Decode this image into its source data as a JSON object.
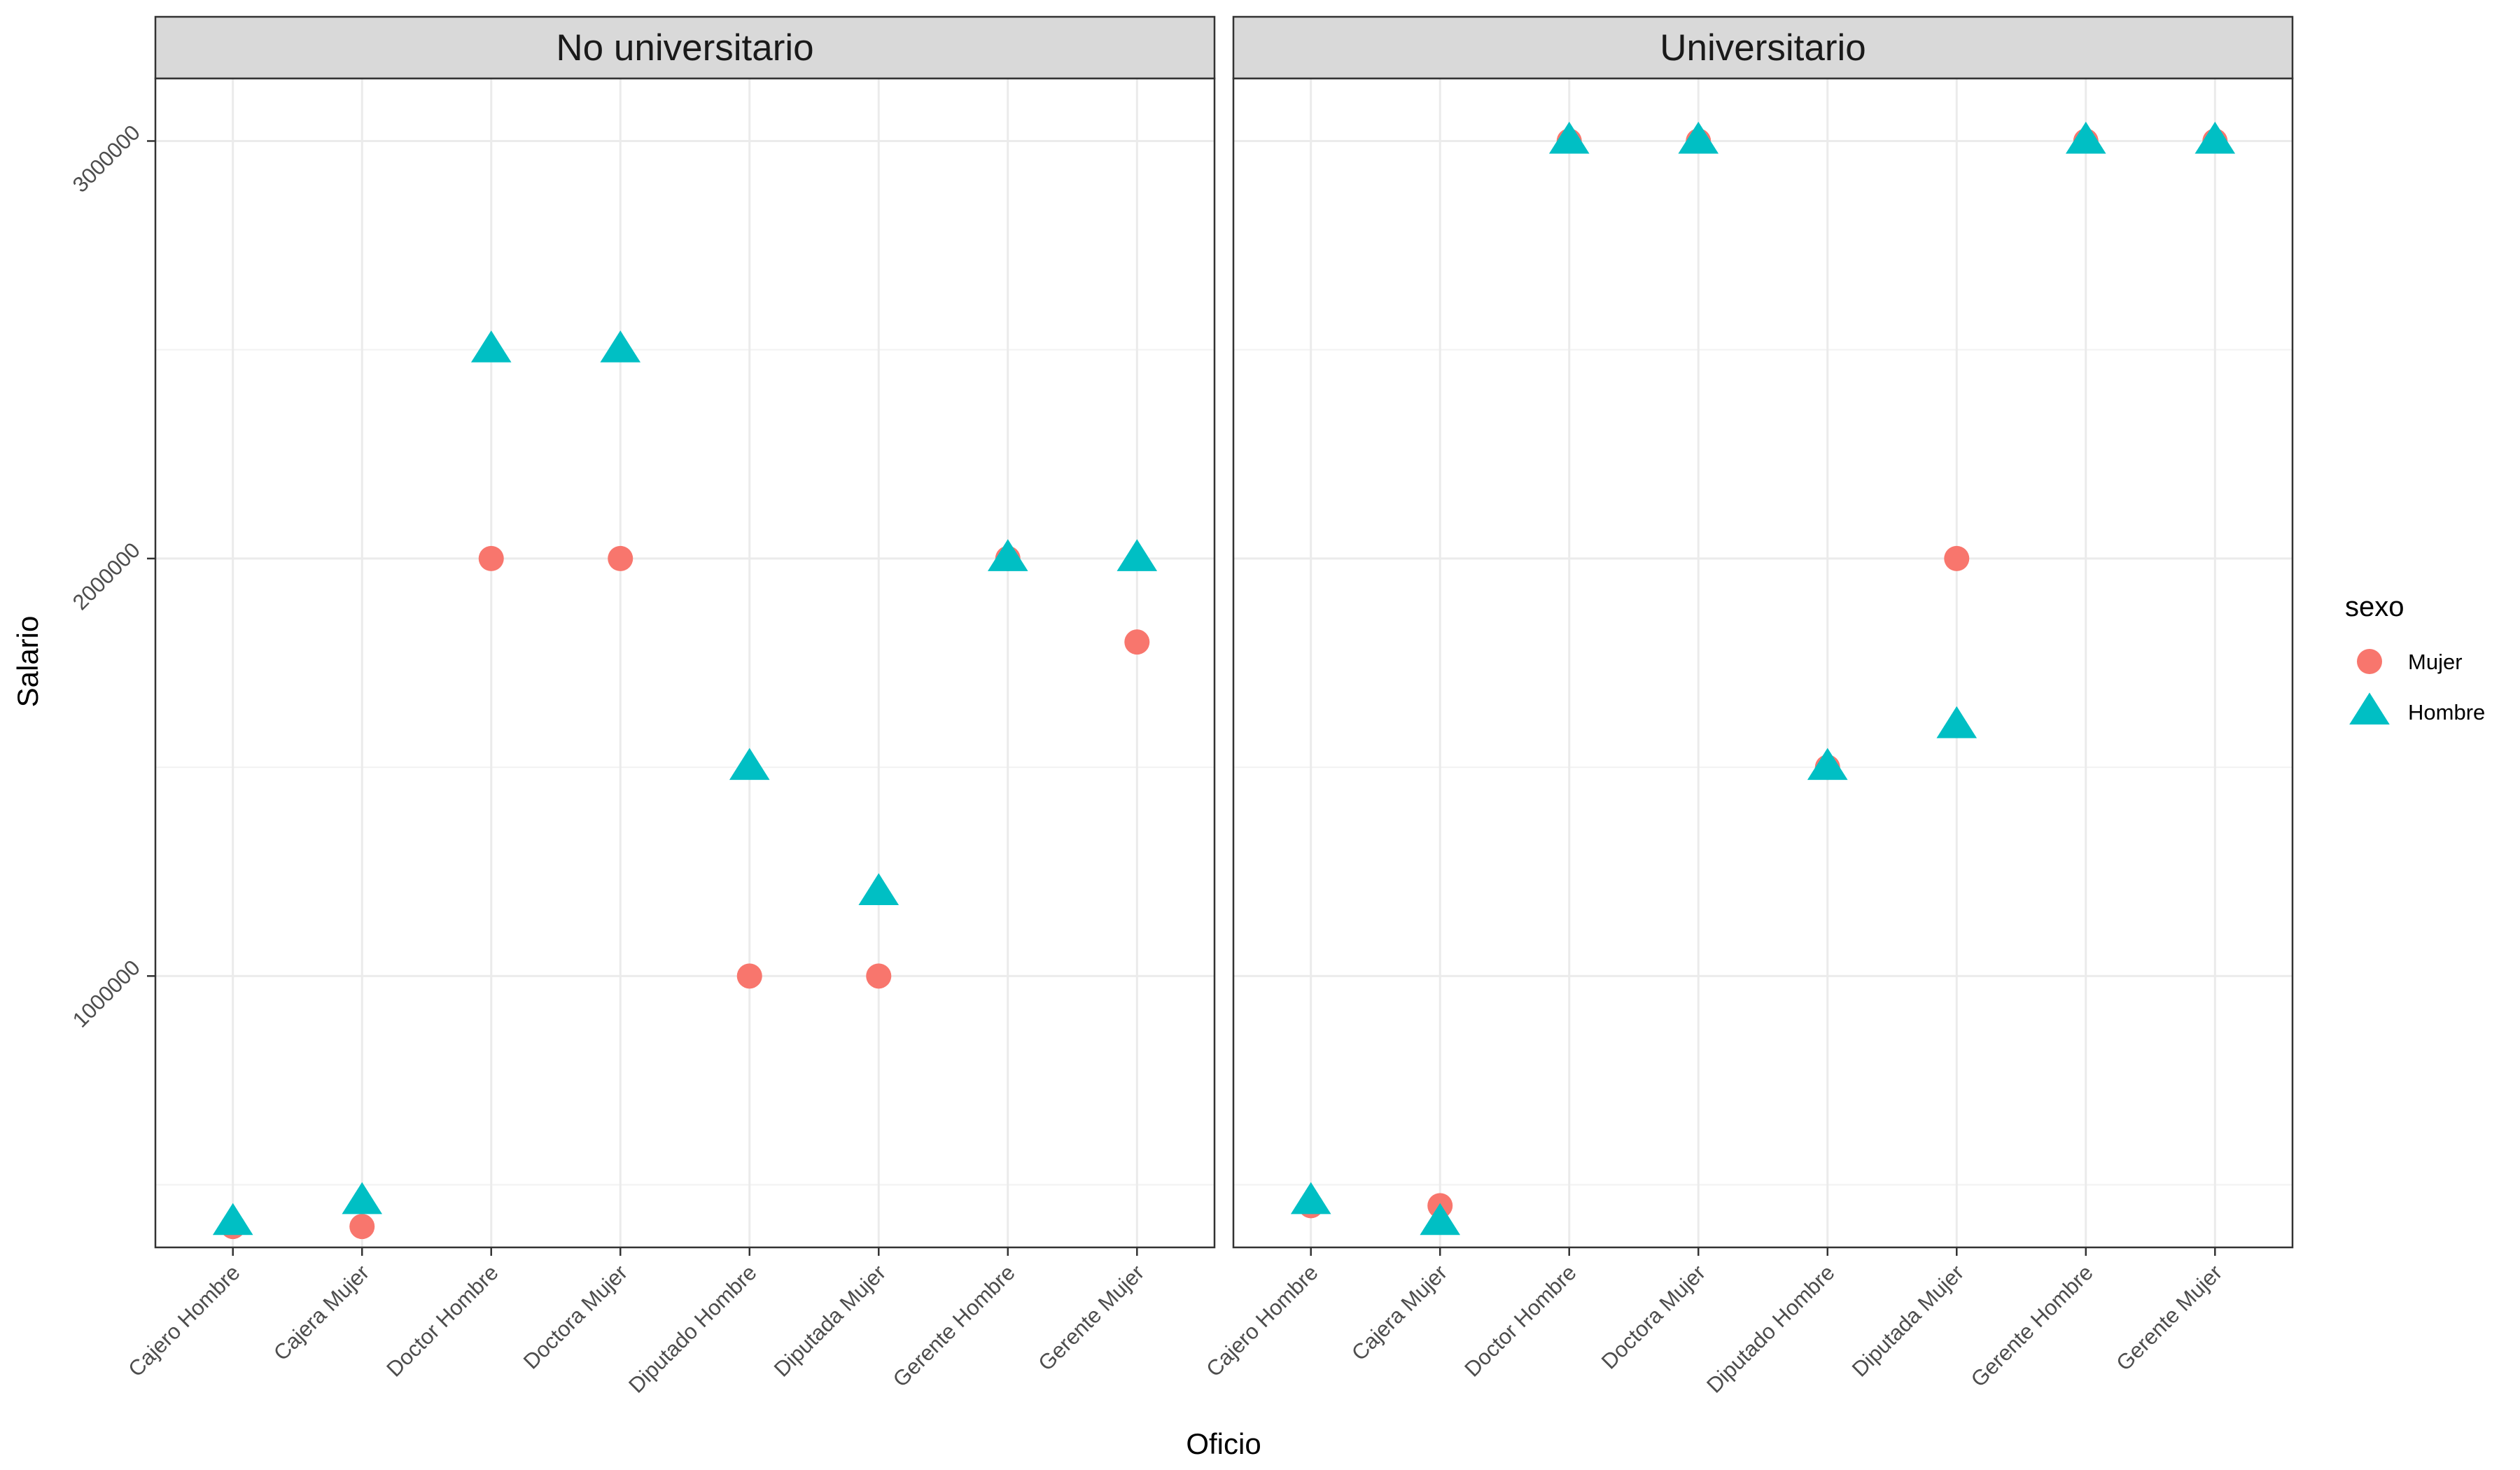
{
  "chart_data": {
    "type": "scatter",
    "xlabel": "Oficio",
    "ylabel": "Salario",
    "ylim": [
      350000,
      3150000
    ],
    "y_ticks": [
      1000000,
      2000000,
      3000000
    ],
    "y_tick_labels": [
      "1000000",
      "2000000",
      "3000000"
    ],
    "y_minor_ticks": [
      500000,
      1500000,
      2500000
    ],
    "categories": [
      "Cajero Hombre",
      "Cajera Mujer",
      "Doctor Hombre",
      "Doctora Mujer",
      "Diputado Hombre",
      "Diputada Mujer",
      "Gerente Hombre",
      "Gerente Mujer"
    ],
    "legend": {
      "title": "sexo",
      "position": "right",
      "entries": [
        {
          "label": "Mujer",
          "shape": "circle",
          "color": "#F8766D"
        },
        {
          "label": "Hombre",
          "shape": "triangle",
          "color": "#00BFC4"
        }
      ]
    },
    "facets": [
      {
        "label": "No universitario",
        "series": [
          {
            "name": "Mujer",
            "values": [
              400000,
              400000,
              2000000,
              2000000,
              1000000,
              1000000,
              2000000,
              1800000
            ]
          },
          {
            "name": "Hombre",
            "values": [
              410000,
              460000,
              2500000,
              2500000,
              1500000,
              1200000,
              2000000,
              2000000
            ]
          }
        ]
      },
      {
        "label": "Universitario",
        "series": [
          {
            "name": "Mujer",
            "values": [
              450000,
              450000,
              3000000,
              3000000,
              1500000,
              2000000,
              3000000,
              3000000
            ]
          },
          {
            "name": "Hombre",
            "values": [
              460000,
              410000,
              3000000,
              3000000,
              1500000,
              1600000,
              3000000,
              3000000
            ]
          }
        ]
      }
    ],
    "grid": true,
    "theme": "bw"
  }
}
